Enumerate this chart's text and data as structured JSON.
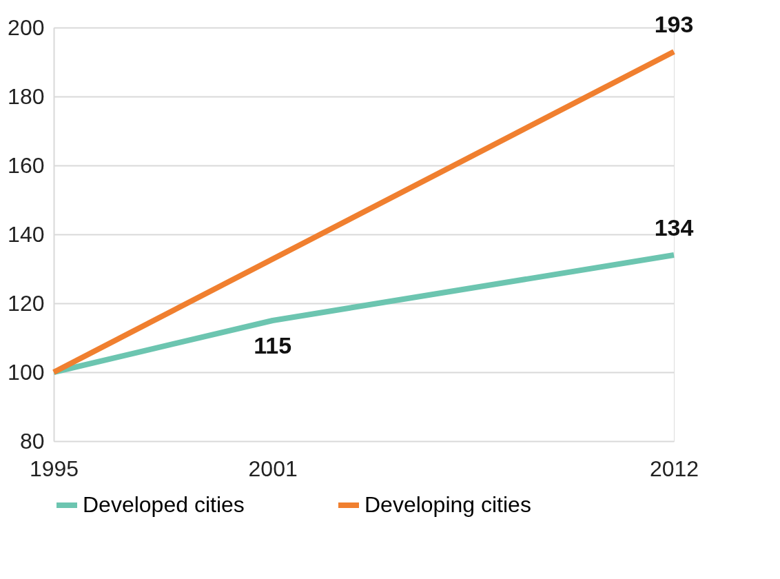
{
  "chart_data": {
    "type": "line",
    "xlim": [
      1995,
      2012
    ],
    "xticks": [
      1995,
      2001,
      2012
    ],
    "ylim": [
      80,
      200
    ],
    "yticks": [
      80,
      100,
      120,
      140,
      160,
      180,
      200
    ],
    "series": [
      {
        "name": "Developed cities",
        "color": "#6cc5b0",
        "x": [
          1995,
          2001,
          2012
        ],
        "values": [
          100,
          115,
          134
        ],
        "value_labels": [
          null,
          "115",
          "134"
        ]
      },
      {
        "name": "Developing cities",
        "color": "#f07f2f",
        "x": [
          1995,
          2012
        ],
        "values": [
          100,
          193
        ],
        "value_labels": [
          null,
          "193"
        ]
      }
    ],
    "grid": "y",
    "legend": "bottom",
    "marker": "none",
    "line_style": "solid"
  }
}
